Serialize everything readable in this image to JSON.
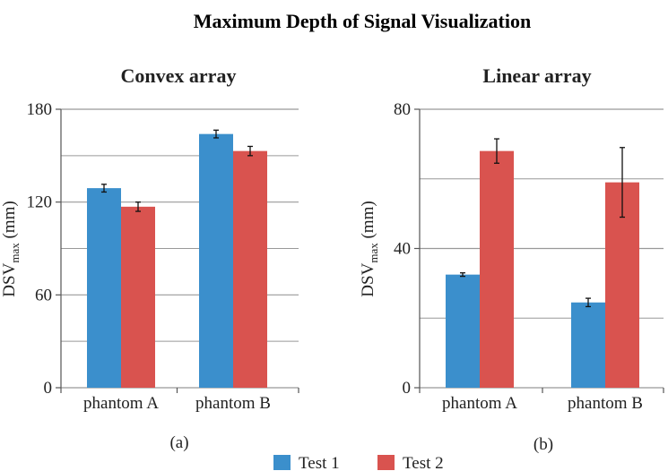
{
  "title": "Maximum Depth of Signal Visualization",
  "colors": {
    "test1": "#3b8fcc",
    "test2": "#d9534f",
    "grid": "#999999"
  },
  "legend": {
    "position": "bottom-center",
    "items": [
      {
        "label": "Test 1",
        "color": "#3b8fcc"
      },
      {
        "label": "Test 2",
        "color": "#d9534f"
      }
    ]
  },
  "chart_data": [
    {
      "type": "bar",
      "title": "Convex array",
      "panel_label": "(a)",
      "ylabel_main": "DSV",
      "ylabel_sub": "max",
      "ylabel_unit": " (mm)",
      "ylim": [
        0,
        180
      ],
      "yticks": [
        0,
        60,
        120,
        180
      ],
      "grid": true,
      "categories": [
        "phantom A",
        "phantom B"
      ],
      "series": [
        {
          "name": "Test 1",
          "values": [
            129,
            164
          ],
          "errors": [
            2.5,
            2.5
          ]
        },
        {
          "name": "Test 2",
          "values": [
            117,
            153
          ],
          "errors": [
            3,
            3
          ]
        }
      ]
    },
    {
      "type": "bar",
      "title": "Linear array",
      "panel_label": "(b)",
      "ylabel_main": "DSV",
      "ylabel_sub": "max",
      "ylabel_unit": " (mm)",
      "ylim": [
        0,
        80
      ],
      "yticks": [
        0,
        40,
        80
      ],
      "grid": true,
      "categories": [
        "phantom A",
        "phantom B"
      ],
      "series": [
        {
          "name": "Test 1",
          "values": [
            32.5,
            24.5
          ],
          "errors": [
            0.5,
            1.2
          ]
        },
        {
          "name": "Test 2",
          "values": [
            68,
            59
          ],
          "errors": [
            3.5,
            10
          ]
        }
      ]
    }
  ]
}
